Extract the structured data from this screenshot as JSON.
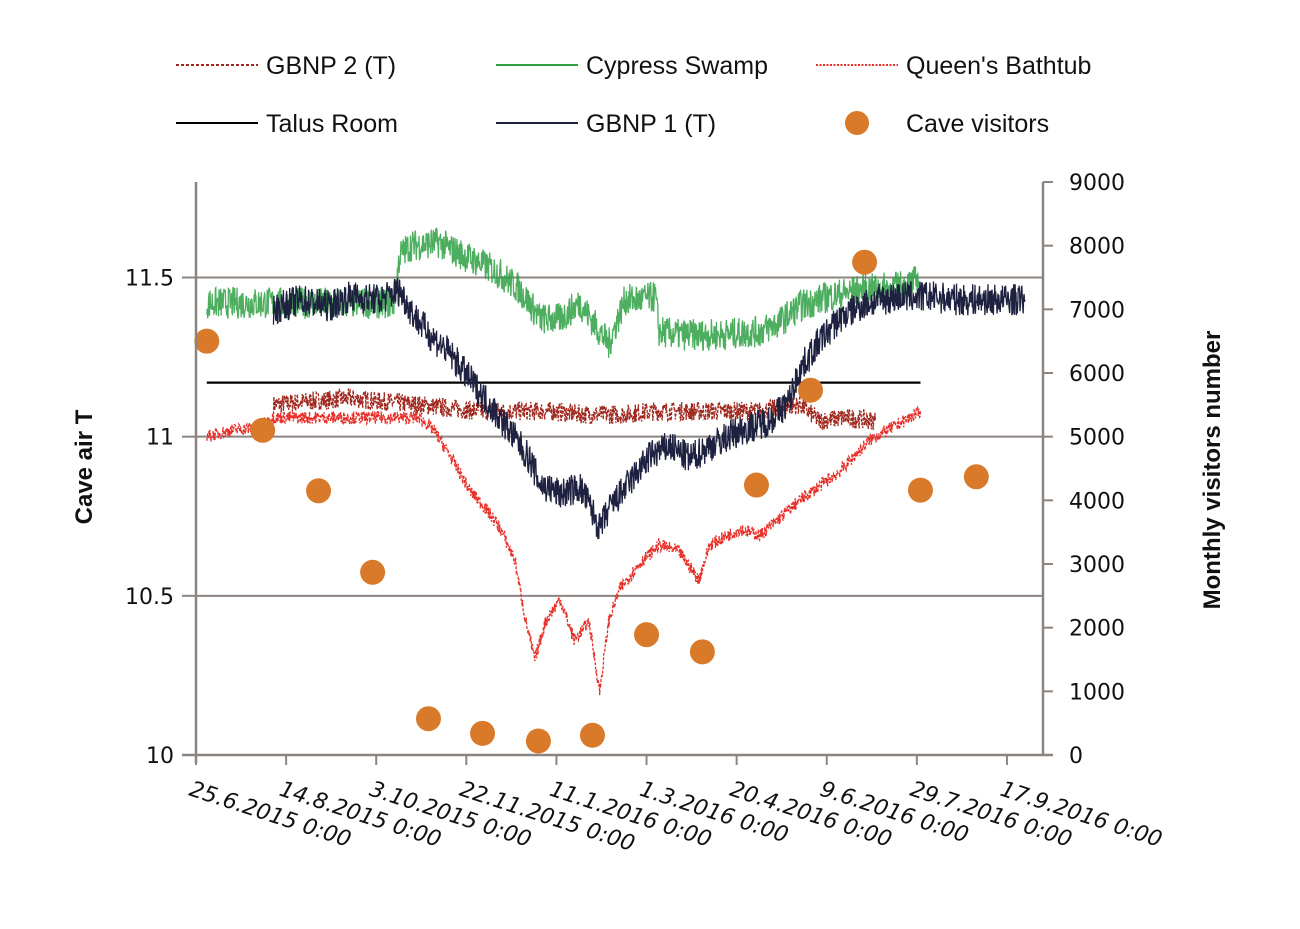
{
  "chart_data": {
    "type": "line",
    "title": "",
    "xlabel": "",
    "ylabel": "Cave air T",
    "y2label": "Monthly visitors number",
    "x_unit": "days since 25.6.2015 0:00",
    "xlim": [
      0,
      470
    ],
    "ylim": [
      10,
      11.8
    ],
    "y2lim": [
      0,
      9000
    ],
    "grid": "horizontal major gridlines on left axis",
    "legend_position": "top",
    "x_ticks": [
      {
        "day": 0,
        "label": "25.6.2015 0:00"
      },
      {
        "day": 50,
        "label": "14.8.2015 0:00"
      },
      {
        "day": 100,
        "label": "3.10.2015 0:00"
      },
      {
        "day": 150,
        "label": "22.11.2015 0:00"
      },
      {
        "day": 200,
        "label": "11.1.2016 0:00"
      },
      {
        "day": 250,
        "label": "1.3.2016 0:00"
      },
      {
        "day": 300,
        "label": "20.4.2016 0:00"
      },
      {
        "day": 350,
        "label": "9.6.2016 0:00"
      },
      {
        "day": 400,
        "label": "29.7.2016 0:00"
      },
      {
        "day": 450,
        "label": "17.9.2016 0:00"
      }
    ],
    "y_ticks": [
      {
        "value": 10,
        "label": "10"
      },
      {
        "value": 10.5,
        "label": "10.5"
      },
      {
        "value": 11,
        "label": "11"
      },
      {
        "value": 11.5,
        "label": "11.5"
      }
    ],
    "y2_ticks": [
      {
        "value": 0,
        "label": "0"
      },
      {
        "value": 1000,
        "label": "1000"
      },
      {
        "value": 2000,
        "label": "2000"
      },
      {
        "value": 3000,
        "label": "3000"
      },
      {
        "value": 4000,
        "label": "4000"
      },
      {
        "value": 5000,
        "label": "5000"
      },
      {
        "value": 6000,
        "label": "6000"
      },
      {
        "value": 7000,
        "label": "7000"
      },
      {
        "value": 8000,
        "label": "8000"
      },
      {
        "value": 9000,
        "label": "9000"
      }
    ],
    "series": [
      {
        "name": "GBNP 2 (T)",
        "axis": "left",
        "style": "dashed",
        "color": "#a0281e",
        "noise": 0.03,
        "x": [
          43,
          60,
          85,
          105,
          124,
          140,
          157,
          180,
          197,
          215,
          235,
          255,
          279,
          300,
          312,
          335,
          346,
          360,
          377
        ],
        "y": [
          11.1,
          11.11,
          11.12,
          11.11,
          11.1,
          11.09,
          11.08,
          11.08,
          11.08,
          11.07,
          11.07,
          11.08,
          11.08,
          11.08,
          11.08,
          11.1,
          11.05,
          11.06,
          11.05
        ]
      },
      {
        "name": "Cypress Swamp",
        "axis": "left",
        "style": "solid",
        "color": "#2ea043",
        "noise": 0.05,
        "x": [
          6,
          35,
          74,
          110,
          113,
          119,
          135,
          141,
          152,
          163,
          169,
          180,
          191,
          202,
          213,
          224,
          229,
          238,
          246,
          255,
          257,
          268,
          290,
          313,
          324,
          335,
          351,
          368,
          390,
          401
        ],
        "y": [
          11.42,
          11.42,
          11.42,
          11.42,
          11.57,
          11.6,
          11.61,
          11.59,
          11.56,
          11.53,
          11.51,
          11.46,
          11.37,
          11.37,
          11.42,
          11.33,
          11.29,
          11.43,
          11.43,
          11.44,
          11.33,
          11.32,
          11.32,
          11.33,
          11.36,
          11.41,
          11.44,
          11.46,
          11.47,
          11.49
        ]
      },
      {
        "name": "Queen's Bathtub",
        "axis": "left",
        "style": "dashed",
        "color": "#e8302a",
        "noise": 0.02,
        "x": [
          6,
          19,
          35,
          43,
          124,
          132,
          141,
          152,
          160,
          169,
          177,
          183,
          188,
          194,
          202,
          210,
          218,
          224,
          229,
          235,
          246,
          257,
          268,
          279,
          285,
          302,
          313,
          335,
          357,
          374,
          390,
          402
        ],
        "y": [
          11.0,
          11.02,
          11.03,
          11.06,
          11.06,
          11.02,
          10.94,
          10.83,
          10.78,
          10.71,
          10.61,
          10.42,
          10.3,
          10.42,
          10.49,
          10.36,
          10.42,
          10.2,
          10.42,
          10.52,
          10.6,
          10.66,
          10.64,
          10.55,
          10.66,
          10.71,
          10.69,
          10.8,
          10.89,
          10.99,
          11.04,
          11.08
        ]
      },
      {
        "name": "Talus Room",
        "axis": "left",
        "style": "solid",
        "color": "#000000",
        "noise": 0,
        "x": [
          6,
          402
        ],
        "y": [
          11.17,
          11.17
        ]
      },
      {
        "name": "GBNP 1 (T)",
        "axis": "left",
        "style": "solid",
        "color": "#1f2140",
        "noise": 0.05,
        "x": [
          43,
          58,
          74,
          85,
          102,
          113,
          121,
          130,
          141,
          152,
          163,
          174,
          185,
          191,
          202,
          213,
          218,
          224,
          229,
          241,
          252,
          263,
          274,
          285,
          302,
          318,
          329,
          335,
          346,
          357,
          368,
          379,
          390,
          407,
          424,
          440,
          460
        ],
        "y": [
          11.4,
          11.43,
          11.41,
          11.44,
          11.43,
          11.46,
          11.38,
          11.32,
          11.26,
          11.18,
          11.1,
          11.02,
          10.93,
          10.85,
          10.82,
          10.84,
          10.79,
          10.71,
          10.77,
          10.86,
          10.94,
          10.97,
          10.93,
          10.97,
          11.02,
          11.05,
          11.11,
          11.21,
          11.3,
          11.37,
          11.41,
          11.43,
          11.44,
          11.44,
          11.43,
          11.43,
          11.43
        ]
      },
      {
        "name": "Cave visitors",
        "axis": "right",
        "style": "marker",
        "color": "#d97a2b",
        "noise": 0,
        "x": [
          6,
          37,
          68,
          98,
          129,
          159,
          190,
          220,
          250,
          281,
          311,
          341,
          371,
          402,
          433
        ],
        "y": [
          6500,
          5100,
          4150,
          2870,
          570,
          340,
          220,
          310,
          1890,
          1620,
          4240,
          5730,
          7740,
          4160,
          4370
        ]
      }
    ]
  },
  "legend": {
    "items": [
      {
        "label": "GBNP 2 (T)"
      },
      {
        "label": "Cypress Swamp"
      },
      {
        "label": "Queen's Bathtub"
      },
      {
        "label": "Talus Room"
      },
      {
        "label": "GBNP 1 (T)"
      },
      {
        "label": "Cave visitors"
      }
    ]
  }
}
